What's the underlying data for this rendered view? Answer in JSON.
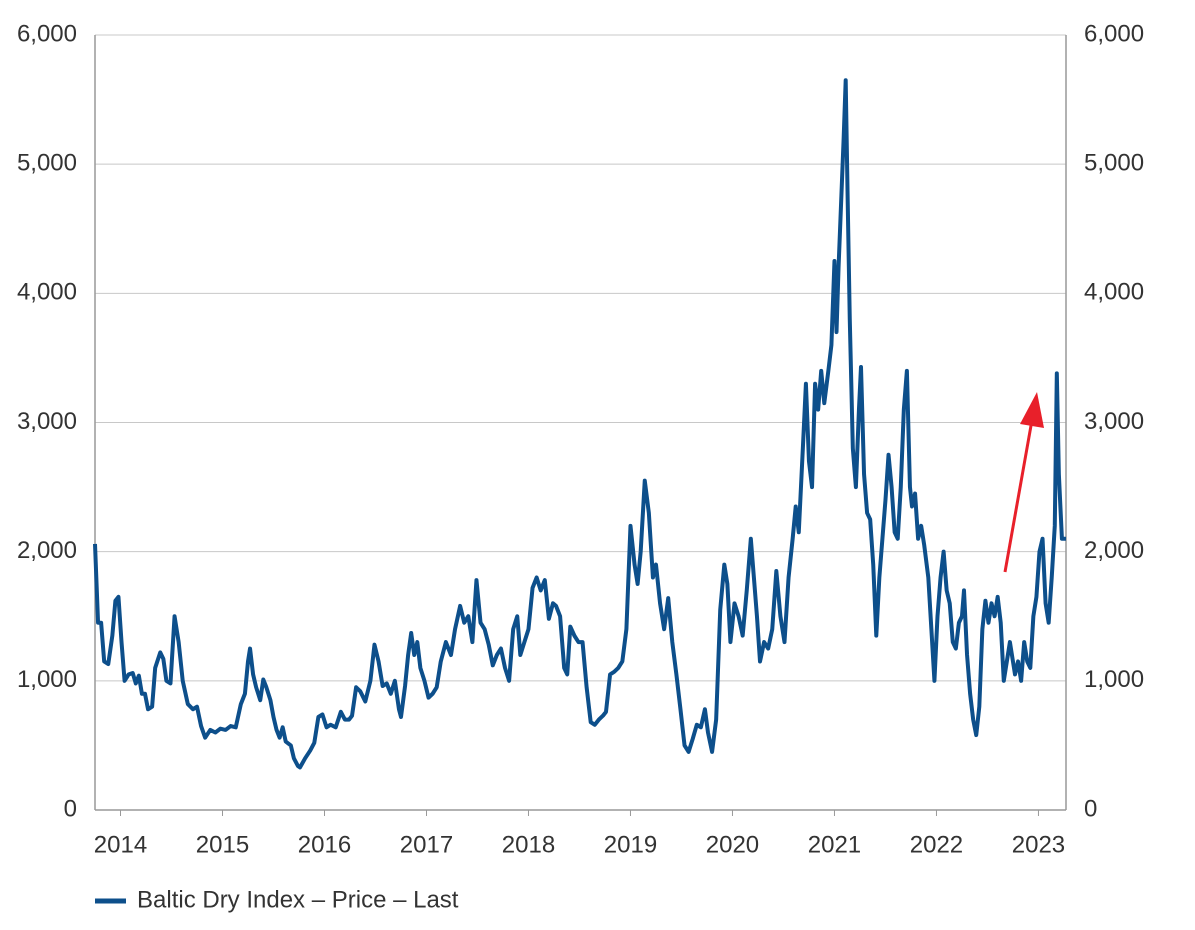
{
  "chart_data": {
    "type": "line",
    "x": [
      2013.75,
      2013.78,
      2013.81,
      2013.84,
      2013.88,
      2013.92,
      2013.95,
      2013.98,
      2014.01,
      2014.04,
      2014.08,
      2014.12,
      2014.15,
      2014.18,
      2014.21,
      2014.24,
      2014.27,
      2014.31,
      2014.34,
      2014.39,
      2014.42,
      2014.45,
      2014.49,
      2014.53,
      2014.57,
      2014.61,
      2014.66,
      2014.71,
      2014.75,
      2014.79,
      2014.83,
      2014.88,
      2014.93,
      2014.98,
      2015.03,
      2015.08,
      2015.13,
      2015.18,
      2015.22,
      2015.25,
      2015.27,
      2015.3,
      2015.33,
      2015.37,
      2015.4,
      2015.43,
      2015.47,
      2015.5,
      2015.53,
      2015.56,
      2015.59,
      2015.62,
      2015.67,
      2015.7,
      2015.74,
      2015.76,
      2015.81,
      2015.86,
      2015.9,
      2015.94,
      2015.98,
      2016.02,
      2016.06,
      2016.11,
      2016.16,
      2016.2,
      2016.24,
      2016.27,
      2016.31,
      2016.35,
      2016.4,
      2016.45,
      2016.49,
      2016.53,
      2016.57,
      2016.61,
      2016.65,
      2016.69,
      2016.73,
      2016.75,
      2016.79,
      2016.82,
      2016.85,
      2016.88,
      2016.91,
      2016.94,
      2016.98,
      2017.02,
      2017.06,
      2017.1,
      2017.14,
      2017.19,
      2017.24,
      2017.28,
      2017.33,
      2017.37,
      2017.41,
      2017.45,
      2017.49,
      2017.53,
      2017.57,
      2017.61,
      2017.65,
      2017.69,
      2017.73,
      2017.77,
      2017.81,
      2017.85,
      2017.89,
      2017.92,
      2017.96,
      2018.0,
      2018.04,
      2018.08,
      2018.12,
      2018.16,
      2018.2,
      2018.24,
      2018.27,
      2018.31,
      2018.35,
      2018.38,
      2018.41,
      2018.45,
      2018.49,
      2018.53,
      2018.57,
      2018.61,
      2018.65,
      2018.69,
      2018.73,
      2018.76,
      2018.8,
      2018.84,
      2018.88,
      2018.92,
      2018.96,
      2019.0,
      2019.04,
      2019.07,
      2019.1,
      2019.14,
      2019.18,
      2019.22,
      2019.25,
      2019.29,
      2019.33,
      2019.37,
      2019.41,
      2019.45,
      2019.49,
      2019.53,
      2019.57,
      2019.61,
      2019.65,
      2019.69,
      2019.73,
      2019.76,
      2019.8,
      2019.84,
      2019.88,
      2019.92,
      2019.95,
      2019.98,
      2020.02,
      2020.06,
      2020.1,
      2020.14,
      2020.18,
      2020.21,
      2020.24,
      2020.27,
      2020.31,
      2020.35,
      2020.39,
      2020.43,
      2020.47,
      2020.51,
      2020.55,
      2020.59,
      2020.62,
      2020.65,
      2020.69,
      2020.72,
      2020.75,
      2020.78,
      2020.81,
      2020.84,
      2020.87,
      2020.9,
      2020.94,
      2020.97,
      2021.0,
      2021.02,
      2021.04,
      2021.07,
      2021.09,
      2021.11,
      2021.13,
      2021.15,
      2021.18,
      2021.21,
      2021.24,
      2021.26,
      2021.29,
      2021.32,
      2021.35,
      2021.38,
      2021.41,
      2021.44,
      2021.47,
      2021.5,
      2021.53,
      2021.56,
      2021.59,
      2021.62,
      2021.65,
      2021.68,
      2021.71,
      2021.74,
      2021.76,
      2021.79,
      2021.82,
      2021.85,
      2021.88,
      2021.92,
      2021.95,
      2021.98,
      2022.01,
      2022.04,
      2022.07,
      2022.1,
      2022.13,
      2022.16,
      2022.19,
      2022.22,
      2022.25,
      2022.27,
      2022.3,
      2022.33,
      2022.36,
      2022.39,
      2022.42,
      2022.45,
      2022.48,
      2022.51,
      2022.54,
      2022.57,
      2022.6,
      2022.63,
      2022.66,
      2022.69,
      2022.72,
      2022.75,
      2022.77,
      2022.8,
      2022.83,
      2022.86,
      2022.89,
      2022.92,
      2022.95,
      2022.98,
      2023.01,
      2023.04,
      2023.07,
      2023.1,
      2023.13,
      2023.16,
      2023.18,
      2023.2,
      2023.23,
      2023.27
    ],
    "series": [
      {
        "name": "Baltic Dry Index – Price – Last",
        "color": "#0d4f8b",
        "values": [
          2060,
          1450,
          1450,
          1150,
          1130,
          1350,
          1620,
          1650,
          1300,
          1000,
          1050,
          1060,
          980,
          1040,
          900,
          900,
          780,
          800,
          1100,
          1220,
          1170,
          1000,
          980,
          1500,
          1300,
          1000,
          820,
          780,
          800,
          650,
          560,
          620,
          600,
          630,
          620,
          650,
          640,
          820,
          900,
          1150,
          1250,
          1050,
          950,
          850,
          1010,
          950,
          850,
          720,
          620,
          560,
          640,
          530,
          500,
          400,
          340,
          330,
          400,
          460,
          520,
          720,
          740,
          640,
          660,
          640,
          760,
          700,
          700,
          730,
          950,
          920,
          840,
          1000,
          1280,
          1150,
          960,
          980,
          900,
          1000,
          780,
          720,
          960,
          1200,
          1370,
          1200,
          1300,
          1100,
          1000,
          870,
          900,
          950,
          1150,
          1300,
          1200,
          1400,
          1580,
          1450,
          1500,
          1300,
          1780,
          1450,
          1400,
          1280,
          1120,
          1200,
          1250,
          1100,
          1000,
          1400,
          1500,
          1200,
          1300,
          1400,
          1720,
          1800,
          1700,
          1780,
          1480,
          1600,
          1580,
          1500,
          1100,
          1050,
          1420,
          1350,
          1300,
          1300,
          950,
          680,
          660,
          700,
          730,
          760,
          1050,
          1070,
          1100,
          1150,
          1400,
          2200,
          1900,
          1750,
          2000,
          2550,
          2300,
          1800,
          1900,
          1600,
          1400,
          1640,
          1300,
          1050,
          780,
          500,
          450,
          550,
          660,
          640,
          780,
          600,
          450,
          700,
          1550,
          1900,
          1750,
          1300,
          1600,
          1500,
          1350,
          1700,
          2100,
          1800,
          1500,
          1150,
          1300,
          1250,
          1400,
          1850,
          1500,
          1300,
          1800,
          2100,
          2350,
          2150,
          2800,
          3300,
          2700,
          2500,
          3300,
          3100,
          3400,
          3150,
          3400,
          3600,
          4250,
          3700,
          4200,
          4800,
          5200,
          5650,
          4700,
          3800,
          2800,
          2500,
          3100,
          3430,
          2600,
          2300,
          2250,
          1900,
          1350,
          1800,
          2100,
          2400,
          2750,
          2500,
          2150,
          2100,
          2500,
          3100,
          3400,
          2500,
          2350,
          2450,
          2100,
          2200,
          2050,
          1800,
          1400,
          1000,
          1500,
          1800,
          2000,
          1700,
          1600,
          1300,
          1250,
          1450,
          1500,
          1700,
          1200,
          900,
          700,
          580,
          800,
          1400,
          1620,
          1450,
          1600,
          1500,
          1650,
          1450,
          1000,
          1150,
          1300,
          1150,
          1050,
          1150,
          1000,
          1300,
          1150,
          1100,
          1500,
          1650,
          2000,
          2100,
          1600,
          1450,
          1800,
          2200,
          3380,
          2600,
          2100,
          2100
        ]
      }
    ],
    "xlim": [
      2013.75,
      2023.27
    ],
    "xticks": [
      2014,
      2015,
      2016,
      2017,
      2018,
      2019,
      2020,
      2021,
      2022,
      2023
    ],
    "ylim": [
      0,
      6000
    ],
    "yticks": [
      0,
      {
        "value": 1000,
        "label": "1,000"
      },
      {
        "value": 2000,
        "label": "2,000"
      },
      {
        "value": 3000,
        "label": "3,000"
      },
      {
        "value": 4000,
        "label": "4,000"
      },
      {
        "value": 5000,
        "label": "5,000"
      },
      {
        "value": 6000,
        "label": "6,000"
      }
    ],
    "y2lim": [
      0,
      6000
    ],
    "y2ticks": [
      0,
      {
        "value": 1000,
        "label": "1,000"
      },
      {
        "value": 2000,
        "label": "2,000"
      },
      {
        "value": 3000,
        "label": "3,000"
      },
      {
        "value": 4000,
        "label": "4,000"
      },
      {
        "value": 5000,
        "label": "5,000"
      },
      {
        "value": 6000,
        "label": "6,000"
      }
    ],
    "grid": true
  }
}
